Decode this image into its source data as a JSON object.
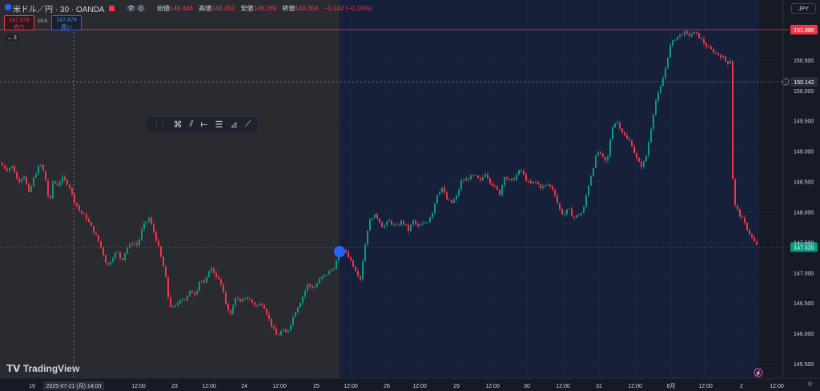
{
  "header": {
    "symbol": "米ドル／円 · 30 · OANDA",
    "open_label": "始値",
    "open": "148.446",
    "high_label": "高値",
    "high": "148.452",
    "low_label": "安値",
    "low": "148.269",
    "close_label": "終値",
    "close": "148.304",
    "change": "−0.142 (−0.10%)"
  },
  "trade": {
    "sell_price": "147.379",
    "sell_label": "売り",
    "buy_price": "147.479",
    "buy_label": "買い",
    "spread": "10.0"
  },
  "collapse_count": "3",
  "currency": "JPY",
  "brand": "TradingView",
  "toolbar_icons": [
    "pattern-icon",
    "pitchfork-icon",
    "horizontal-ray-icon",
    "fib-icon",
    "projection-icon",
    "trend-line-icon"
  ],
  "colors": {
    "up": "#089981",
    "down": "#f23645",
    "accent": "#2962ff"
  },
  "chart_data": {
    "type": "candlestick",
    "title": "",
    "ylim": [
      145.4,
      151.3
    ],
    "y_ticks": [
      "151.000",
      "150.500",
      "150.000",
      "149.500",
      "149.000",
      "148.500",
      "148.000",
      "147.500",
      "147.000",
      "146.500",
      "146.000",
      "145.500"
    ],
    "x_ticks": [
      "19",
      "12:00",
      "23",
      "12:00",
      "24",
      "12:00",
      "25",
      "12:00",
      "26",
      "12:00",
      "29",
      "12:00",
      "30",
      "12:00",
      "31",
      "12:00",
      "8月",
      "12:00",
      "2",
      "12:00"
    ],
    "x_cursor_label": "2025-07-21 (月)  14:00",
    "price_lines": [
      {
        "label": "151.000",
        "value": 151.0
      },
      {
        "label": "150.142",
        "value": 150.142
      },
      {
        "label": "147.420",
        "value": 147.42
      }
    ],
    "close_path": [
      [
        0,
        148.8
      ],
      [
        8,
        148.7
      ],
      [
        16,
        148.75
      ],
      [
        22,
        148.5
      ],
      [
        30,
        148.6
      ],
      [
        36,
        148.3
      ],
      [
        42,
        148.55
      ],
      [
        50,
        148.8
      ],
      [
        56,
        148.6
      ],
      [
        62,
        148.1
      ],
      [
        66,
        148.5
      ],
      [
        72,
        148.45
      ],
      [
        78,
        148.55
      ],
      [
        86,
        148.45
      ],
      [
        92,
        148.2
      ],
      [
        100,
        148.0
      ],
      [
        108,
        147.9
      ],
      [
        116,
        147.7
      ],
      [
        122,
        147.55
      ],
      [
        128,
        147.35
      ],
      [
        134,
        147.1
      ],
      [
        140,
        147.25
      ],
      [
        146,
        147.35
      ],
      [
        152,
        147.2
      ],
      [
        158,
        147.4
      ],
      [
        166,
        147.5
      ],
      [
        172,
        147.45
      ],
      [
        178,
        147.75
      ],
      [
        186,
        147.9
      ],
      [
        194,
        147.6
      ],
      [
        200,
        147.3
      ],
      [
        206,
        147.0
      ],
      [
        210,
        146.6
      ],
      [
        214,
        146.4
      ],
      [
        220,
        146.45
      ],
      [
        226,
        146.6
      ],
      [
        232,
        146.55
      ],
      [
        238,
        146.7
      ],
      [
        244,
        146.65
      ],
      [
        250,
        146.9
      ],
      [
        256,
        146.8
      ],
      [
        262,
        147.1
      ],
      [
        270,
        146.95
      ],
      [
        276,
        146.8
      ],
      [
        282,
        146.5
      ],
      [
        288,
        146.3
      ],
      [
        294,
        146.6
      ],
      [
        300,
        146.5
      ],
      [
        306,
        146.6
      ],
      [
        312,
        146.55
      ],
      [
        320,
        146.45
      ],
      [
        328,
        146.5
      ],
      [
        334,
        146.3
      ],
      [
        340,
        146.1
      ],
      [
        346,
        145.95
      ],
      [
        352,
        146.05
      ],
      [
        358,
        146.0
      ],
      [
        364,
        146.2
      ],
      [
        370,
        146.4
      ],
      [
        376,
        146.55
      ],
      [
        384,
        146.8
      ],
      [
        392,
        146.75
      ],
      [
        400,
        146.9
      ],
      [
        410,
        147.0
      ],
      [
        418,
        147.1
      ],
      [
        424,
        147.35
      ],
      [
        432,
        147.35
      ],
      [
        438,
        147.2
      ],
      [
        444,
        147.05
      ],
      [
        450,
        146.9
      ],
      [
        454,
        147.3
      ],
      [
        460,
        147.8
      ],
      [
        466,
        147.95
      ],
      [
        472,
        147.9
      ],
      [
        478,
        147.75
      ],
      [
        486,
        147.85
      ],
      [
        494,
        147.75
      ],
      [
        502,
        147.85
      ],
      [
        510,
        147.7
      ],
      [
        516,
        147.85
      ],
      [
        522,
        147.75
      ],
      [
        528,
        147.8
      ],
      [
        534,
        147.85
      ],
      [
        540,
        148.0
      ],
      [
        546,
        148.3
      ],
      [
        552,
        148.4
      ],
      [
        558,
        148.2
      ],
      [
        564,
        148.15
      ],
      [
        570,
        148.25
      ],
      [
        576,
        148.5
      ],
      [
        584,
        148.55
      ],
      [
        592,
        148.6
      ],
      [
        600,
        148.5
      ],
      [
        606,
        148.65
      ],
      [
        612,
        148.5
      ],
      [
        618,
        148.4
      ],
      [
        624,
        148.3
      ],
      [
        630,
        148.6
      ],
      [
        636,
        148.5
      ],
      [
        642,
        148.55
      ],
      [
        650,
        148.7
      ],
      [
        656,
        148.55
      ],
      [
        662,
        148.45
      ],
      [
        668,
        148.5
      ],
      [
        676,
        148.4
      ],
      [
        684,
        148.45
      ],
      [
        692,
        148.35
      ],
      [
        698,
        148.05
      ],
      [
        704,
        147.95
      ],
      [
        710,
        148.05
      ],
      [
        716,
        147.9
      ],
      [
        722,
        147.95
      ],
      [
        728,
        148.0
      ],
      [
        734,
        148.4
      ],
      [
        740,
        148.7
      ],
      [
        746,
        149.0
      ],
      [
        752,
        148.9
      ],
      [
        758,
        148.8
      ],
      [
        764,
        149.4
      ],
      [
        770,
        149.5
      ],
      [
        776,
        149.35
      ],
      [
        782,
        149.2
      ],
      [
        788,
        149.15
      ],
      [
        794,
        148.9
      ],
      [
        800,
        148.75
      ],
      [
        806,
        148.85
      ],
      [
        812,
        149.3
      ],
      [
        818,
        149.8
      ],
      [
        824,
        150.0
      ],
      [
        830,
        150.3
      ],
      [
        836,
        150.7
      ],
      [
        842,
        150.85
      ],
      [
        848,
        150.9
      ],
      [
        854,
        150.95
      ],
      [
        860,
        150.9
      ],
      [
        866,
        150.95
      ],
      [
        872,
        150.9
      ],
      [
        878,
        150.8
      ],
      [
        884,
        150.7
      ],
      [
        890,
        150.65
      ],
      [
        896,
        150.6
      ],
      [
        902,
        150.55
      ],
      [
        908,
        150.45
      ],
      [
        912,
        150.5
      ],
      [
        914,
        148.7
      ],
      [
        918,
        148.1
      ],
      [
        922,
        148.0
      ],
      [
        926,
        147.9
      ],
      [
        930,
        147.8
      ],
      [
        936,
        147.65
      ],
      [
        942,
        147.5
      ],
      [
        946,
        147.42
      ]
    ]
  }
}
